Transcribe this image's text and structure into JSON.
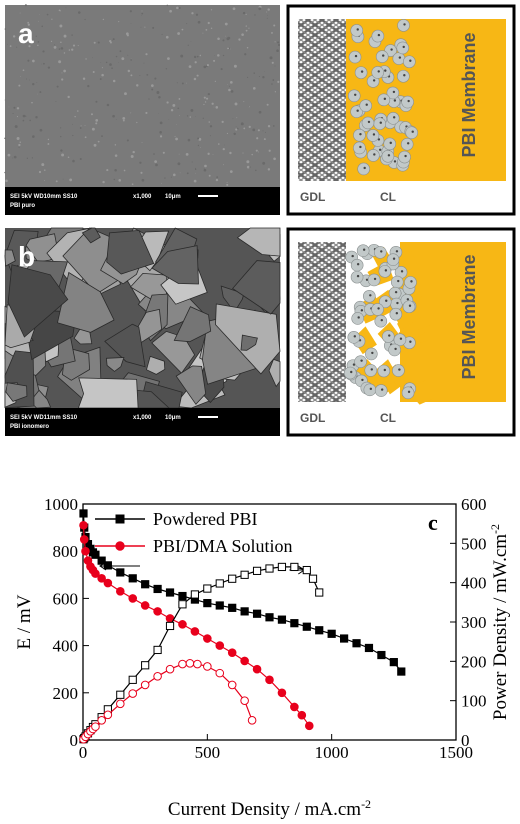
{
  "panels": [
    {
      "label": "a",
      "sem_info": "SEI   5kV    WD10mm SS10",
      "magnification": "x1,000",
      "scale": "10μm",
      "sample": "PBI puro",
      "schematic": {
        "gdl": "GDL",
        "cl": "CL",
        "membrane": "PBI Membrane"
      }
    },
    {
      "label": "b",
      "sem_info": "SEI   5kV    WD11mm SS10",
      "magnification": "x1,000",
      "scale": "10μm",
      "sample": "PBI ionomero",
      "schematic": {
        "gdl": "GDL",
        "cl": "CL",
        "membrane": "PBI Membrane"
      }
    }
  ],
  "chart_data": {
    "type": "line",
    "panel_label": "c",
    "xlabel": {
      "text": "Current Density / mA.cm",
      "sup": "-2"
    },
    "ylabel": "E / mV",
    "y2label": {
      "text": "Power Density / mW.cm",
      "sup": "-2"
    },
    "xlim": [
      0,
      1500
    ],
    "xticks": [
      0,
      500,
      1000,
      1500
    ],
    "ylim": [
      0,
      1000
    ],
    "yticks": [
      0,
      200,
      400,
      600,
      800,
      1000
    ],
    "y2lim": [
      0,
      600
    ],
    "y2ticks": [
      0,
      100,
      200,
      300,
      400,
      500,
      600
    ],
    "legend": "upper left",
    "series": [
      {
        "name": "Powdered PBI",
        "color": "#000000",
        "marker": "square",
        "filled": true,
        "x": [
          2,
          5,
          10,
          20,
          30,
          40,
          50,
          75,
          100,
          150,
          200,
          250,
          300,
          350,
          400,
          450,
          500,
          550,
          600,
          650,
          700,
          750,
          800,
          850,
          900,
          950,
          1000,
          1050,
          1100,
          1150,
          1200,
          1250,
          1280
        ],
        "values": [
          960,
          900,
          860,
          830,
          810,
          795,
          785,
          760,
          740,
          710,
          685,
          660,
          640,
          625,
          610,
          595,
          580,
          570,
          560,
          545,
          535,
          520,
          510,
          495,
          480,
          465,
          450,
          430,
          410,
          390,
          360,
          330,
          290
        ]
      },
      {
        "name": "PBI/DMA Solution",
        "color": "#e8001c",
        "marker": "circle",
        "filled": true,
        "x": [
          2,
          5,
          10,
          20,
          30,
          40,
          50,
          75,
          100,
          150,
          200,
          250,
          300,
          350,
          400,
          450,
          500,
          550,
          600,
          650,
          700,
          750,
          800,
          850,
          880,
          910
        ],
        "values": [
          910,
          850,
          800,
          760,
          735,
          720,
          705,
          685,
          665,
          630,
          600,
          570,
          545,
          515,
          490,
          460,
          430,
          400,
          370,
          335,
          300,
          255,
          200,
          140,
          105,
          60
        ]
      },
      {
        "color": "#000000",
        "marker": "square",
        "filled": false,
        "axis": "y2",
        "x": [
          2,
          5,
          10,
          20,
          30,
          40,
          50,
          75,
          100,
          150,
          200,
          250,
          300,
          350,
          400,
          450,
          500,
          550,
          600,
          650,
          700,
          750,
          800,
          850,
          900,
          925,
          950
        ],
        "values": [
          2,
          5,
          9,
          17,
          25,
          33,
          40,
          58,
          78,
          115,
          153,
          190,
          229,
          290,
          345,
          370,
          385,
          398,
          410,
          420,
          430,
          436,
          440,
          440,
          432,
          410,
          375
        ]
      },
      {
        "color": "#e8001c",
        "marker": "circle",
        "filled": false,
        "axis": "y2",
        "x": [
          2,
          10,
          20,
          30,
          40,
          50,
          75,
          100,
          150,
          200,
          250,
          300,
          350,
          400,
          430,
          460,
          500,
          550,
          600,
          650,
          680
        ],
        "values": [
          2,
          8,
          15,
          22,
          28,
          34,
          50,
          64,
          92,
          118,
          140,
          162,
          180,
          193,
          195,
          193,
          187,
          170,
          140,
          100,
          50
        ]
      }
    ]
  }
}
